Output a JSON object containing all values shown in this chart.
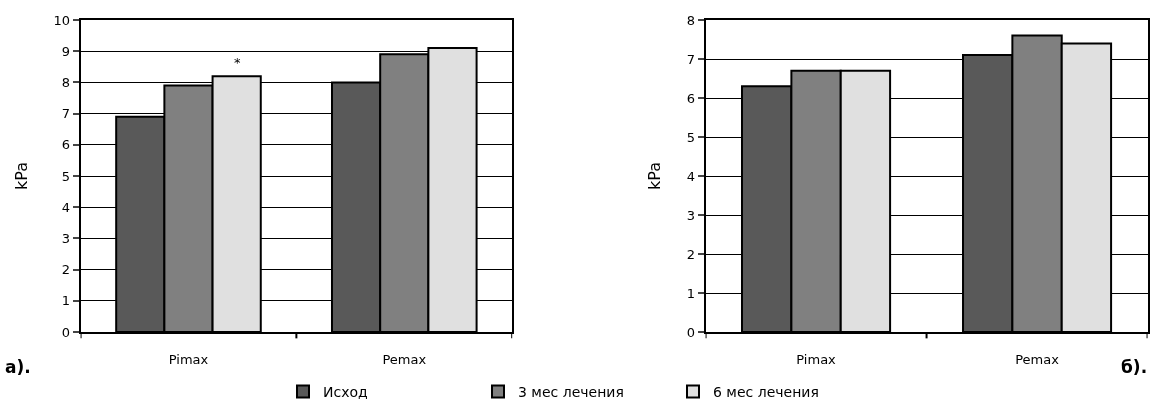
{
  "chart_data": [
    {
      "type": "bar",
      "ylabel": "kPa",
      "categories": [
        "Pimax",
        "Pemax"
      ],
      "series": [
        {
          "name": "Исход",
          "color": "#595959",
          "values": [
            6.9,
            8.0
          ]
        },
        {
          "name": "3 мес лечения",
          "color": "#808080",
          "values": [
            7.9,
            8.9
          ]
        },
        {
          "name": "6 мес лечения",
          "color": "#e0e0e0",
          "values": [
            8.2,
            9.1
          ]
        }
      ],
      "ylim": [
        0,
        10
      ],
      "yticks": [
        0,
        1,
        2,
        3,
        4,
        5,
        6,
        7,
        8,
        9,
        10
      ],
      "grid": "y",
      "legend": "bottom",
      "annotations": [
        "*",
        "а)."
      ]
    },
    {
      "type": "bar",
      "ylabel": "kPa",
      "categories": [
        "Pimax",
        "Pemax"
      ],
      "series": [
        {
          "name": "Исход",
          "color": "#595959",
          "values": [
            6.3,
            7.1
          ]
        },
        {
          "name": "3 мес лечения",
          "color": "#808080",
          "values": [
            6.7,
            7.6
          ]
        },
        {
          "name": "6 мес лечения",
          "color": "#e0e0e0",
          "values": [
            6.7,
            7.4
          ]
        }
      ],
      "ylim": [
        0,
        8
      ],
      "yticks": [
        0,
        1,
        2,
        3,
        4,
        5,
        6,
        7,
        8
      ],
      "grid": "y",
      "legend": "bottom",
      "annotations": [
        "б)."
      ]
    }
  ]
}
